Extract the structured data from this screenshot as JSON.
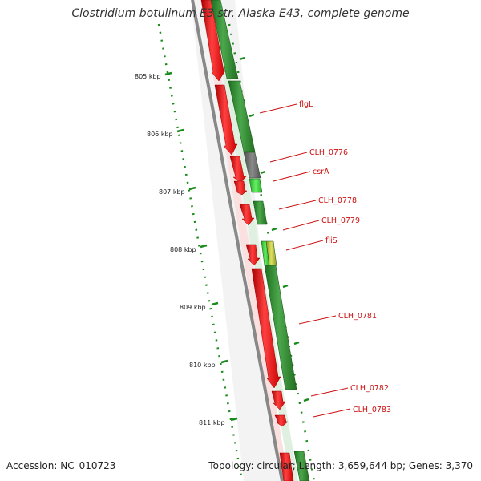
{
  "title": "Clostridium botulinum E3 str. Alaska E43, complete genome",
  "footer": {
    "accession": "Accession: NC_010723",
    "summary": "Topology: circular; Length: 3,659,644 bp; Genes: 3,370"
  },
  "colors": {
    "forward_cds": "#2e8b2e",
    "reverse_cds": "#e01a1a",
    "highlight_cds": "#33cc33",
    "gray_cds": "#666666",
    "yellow_cds": "#c8d23a",
    "backbone": "#888888",
    "tick": "#1a8a1a",
    "label": "#cc1111"
  },
  "ticks": [
    "805 kbp",
    "806 kbp",
    "807 kbp",
    "808 kbp",
    "809 kbp",
    "810 kbp",
    "811 kbp"
  ],
  "gene_labels": [
    "flgL",
    "CLH_0776",
    "csrA",
    "CLH_0778",
    "CLH_0779",
    "fliS",
    "CLH_0781",
    "CLH_0782",
    "CLH_0783"
  ]
}
